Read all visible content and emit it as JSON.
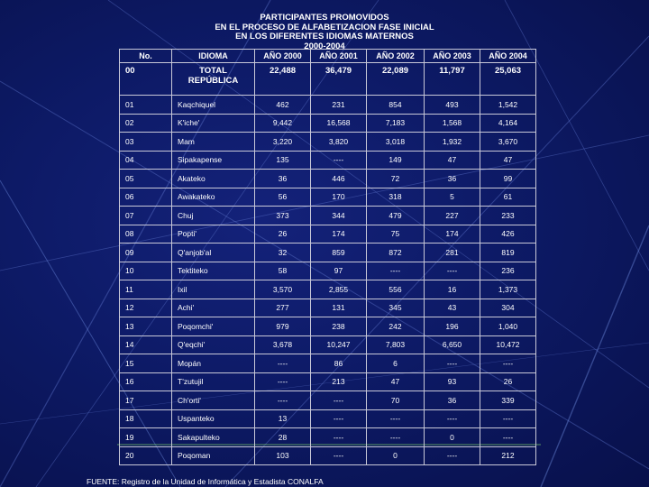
{
  "title_lines": [
    "PARTICIPANTES PROMOVIDOS",
    "EN EL PROCESO DE ALFABETIZACION FASE INICIAL",
    "EN LOS DIFERENTES IDIOMAS MATERNOS",
    "2000-2004"
  ],
  "table": {
    "headers": [
      "No.",
      "IDIOMA",
      "AÑO 2000",
      "AÑO 2001",
      "AÑO 2002",
      "AÑO 2003",
      "AÑO 2004"
    ],
    "total": {
      "no": "00",
      "label_line1": "TOTAL",
      "label_line2": "REPÚBLICA",
      "values": [
        "22,488",
        "36,479",
        "22,089",
        "11,797",
        "25,063"
      ]
    },
    "rows": [
      [
        "01",
        "Kaqchiquel",
        "462",
        "231",
        "854",
        "493",
        "1,542"
      ],
      [
        "02",
        "K'iche'",
        "9,442",
        "16,568",
        "7,183",
        "1,568",
        "4,164"
      ],
      [
        "03",
        "Mam",
        "3,220",
        "3,820",
        "3,018",
        "1,932",
        "3,670"
      ],
      [
        "04",
        "Sipakapense",
        "135",
        "----",
        "149",
        "47",
        "47"
      ],
      [
        "05",
        "Akateko",
        "36",
        "446",
        "72",
        "36",
        "99"
      ],
      [
        "06",
        "Awakateko",
        "56",
        "170",
        "318",
        "5",
        "61"
      ],
      [
        "07",
        "Chuj",
        "373",
        "344",
        "479",
        "227",
        "233"
      ],
      [
        "08",
        "Popti'",
        "26",
        "174",
        "75",
        "174",
        "426"
      ],
      [
        "09",
        "Q'anjob'al",
        "32",
        "859",
        "872",
        "281",
        "819"
      ],
      [
        "10",
        "Tektiteko",
        "58",
        "97",
        "----",
        "----",
        "236"
      ],
      [
        "11",
        "Ixil",
        "3,570",
        "2,855",
        "556",
        "16",
        "1,373"
      ],
      [
        "12",
        "Achi'",
        "277",
        "131",
        "345",
        "43",
        "304"
      ],
      [
        "13",
        "Poqomchi'",
        "979",
        "238",
        "242",
        "196",
        "1,040"
      ],
      [
        "14",
        "Q'eqchi'",
        "3,678",
        "10,247",
        "7,803",
        "6,650",
        "10,472"
      ],
      [
        "15",
        "Mopán",
        "----",
        "86",
        "6",
        "----",
        "----"
      ],
      [
        "16",
        "T'zutujil",
        "----",
        "213",
        "47",
        "93",
        "26"
      ],
      [
        "17",
        "Ch'orti'",
        "----",
        "----",
        "70",
        "36",
        "339"
      ],
      [
        "18",
        "Uspanteko",
        "13",
        "----",
        "----",
        "----",
        "----"
      ],
      [
        "19",
        "Sakapulteko",
        "28",
        "----",
        "----",
        "0",
        "----"
      ],
      [
        "20",
        "Poqoman",
        "103",
        "----",
        "0",
        "----",
        "212"
      ]
    ]
  },
  "source": "FUENTE: Registro de la Unidad de Informática y Estadista   CONALFA"
}
